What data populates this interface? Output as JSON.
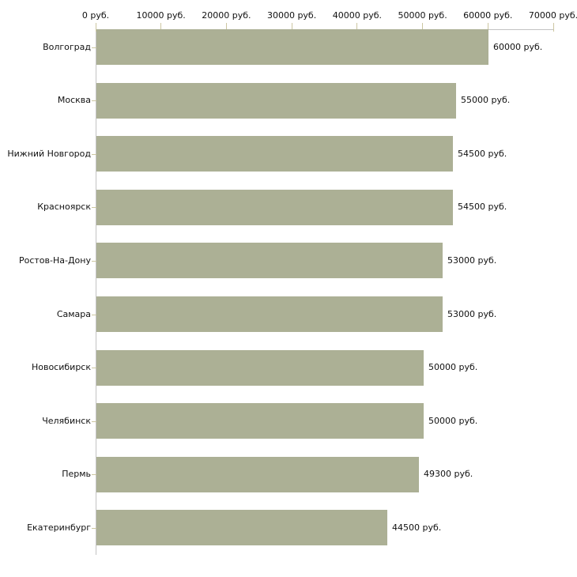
{
  "chart_data": {
    "type": "bar",
    "orientation": "horizontal",
    "title": "",
    "categories": [
      "Волгоград",
      "Москва",
      "Нижний Новгород",
      "Красноярск",
      "Ростов-На-Дону",
      "Самара",
      "Новосибирск",
      "Челябинск",
      "Пермь",
      "Екатеринбург"
    ],
    "values": [
      60000,
      55000,
      54500,
      54500,
      53000,
      53000,
      50000,
      50000,
      49300,
      44500
    ],
    "value_labels": [
      "60000 руб.",
      "55000 руб.",
      "54500 руб.",
      "54500 руб.",
      "53000 руб.",
      "53000 руб.",
      "50000 руб.",
      "50000 руб.",
      "49300 руб.",
      "44500 руб."
    ],
    "x_ticks": [
      0,
      10000,
      20000,
      30000,
      40000,
      50000,
      60000,
      70000
    ],
    "x_tick_labels": [
      "0 руб.",
      "10000 руб.",
      "20000 руб.",
      "30000 руб.",
      "40000 руб.",
      "50000 руб.",
      "60000 руб.",
      "70000 руб."
    ],
    "xlim": [
      0,
      70000
    ],
    "unit": "руб.",
    "grid": false,
    "legend": null,
    "axis_position": "top",
    "colors": {
      "bar": "#acb095",
      "axis": "#c3c3c3",
      "tick": "#ccc6a1",
      "text": "#111111",
      "background": "#ffffff"
    }
  }
}
